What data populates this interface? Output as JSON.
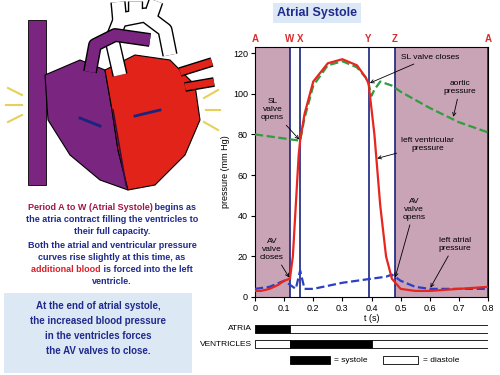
{
  "title": {
    "text": "Atrial Systole",
    "color": "#1f2a8c",
    "background": "#dce8f5"
  },
  "text_panel": {
    "paragraphs": [
      {
        "lines": [
          [
            {
              "text": "Period A to W (Atrial Systole)",
              "color": "#a3164a"
            },
            {
              "text": " begins as",
              "color": "#1f2a8c"
            }
          ],
          [
            {
              "text": "the atria contract filling the ventricles to",
              "color": "#1f2a8c"
            }
          ],
          [
            {
              "text": "their full capacity.",
              "color": "#1f2a8c"
            }
          ]
        ]
      },
      {
        "lines": [
          [
            {
              "text": "Both the atrial and ventricular pressure",
              "color": "#1f2a8c"
            }
          ],
          [
            {
              "text": "curves rise slightly at this time, as",
              "color": "#1f2a8c"
            }
          ],
          [
            {
              "text": "additional blood",
              "color": "#d8202a"
            },
            {
              "text": " is forced into the left",
              "color": "#1f2a8c"
            }
          ],
          [
            {
              "text": "ventricle.",
              "color": "#1f2a8c"
            }
          ]
        ]
      }
    ],
    "callout": {
      "lines": [
        "At the end of atrial systole,",
        "the increased blood pressure",
        "in the ventricles forces",
        "the AV valves to close."
      ],
      "color": "#1f2a8c",
      "background": "#dde8f5"
    }
  },
  "chart_data": {
    "type": "line",
    "xlabel": "t (s)",
    "ylabel": "pressure (mm Hg)",
    "xlim": [
      0,
      0.8
    ],
    "xticks": [
      0,
      0.1,
      0.2,
      0.3,
      0.4,
      0.5,
      0.6,
      0.7,
      0.8
    ],
    "ylim": [
      0,
      123
    ],
    "yticks": [
      0,
      20,
      40,
      60,
      80,
      100,
      120
    ],
    "shaded_spans": [
      {
        "start": 0,
        "end": 0.12
      },
      {
        "start": 0.48,
        "end": 0.8
      }
    ],
    "phase_points": [
      {
        "label": "A",
        "x": 0
      },
      {
        "label": "W",
        "x": 0.12
      },
      {
        "label": "X",
        "x": 0.155
      },
      {
        "label": "Y",
        "x": 0.39
      },
      {
        "label": "Z",
        "x": 0.48
      },
      {
        "label": "A",
        "x": 0.8
      }
    ],
    "series": [
      {
        "color": "#2e9e3e",
        "line_style": "dashed",
        "x": [
          0,
          0.05,
          0.1,
          0.15,
          0.155,
          0.17,
          0.2,
          0.25,
          0.3,
          0.35,
          0.38,
          0.39,
          0.4,
          0.41,
          0.43,
          0.47,
          0.5,
          0.6,
          0.7,
          0.8
        ],
        "values": [
          80,
          79,
          78,
          77,
          77,
          88,
          104,
          114,
          116,
          113,
          108,
          105,
          99,
          102,
          106,
          104,
          101,
          93,
          86,
          81
        ]
      },
      {
        "color": "#2b3fc6",
        "line_style": "dashed",
        "x": [
          0,
          0.05,
          0.1,
          0.12,
          0.14,
          0.155,
          0.17,
          0.2,
          0.3,
          0.4,
          0.45,
          0.47,
          0.5,
          0.55,
          0.6,
          0.7,
          0.8
        ],
        "values": [
          4,
          5,
          8,
          6,
          4,
          13,
          4,
          4,
          7,
          9,
          10,
          11,
          8,
          5,
          4,
          4,
          4
        ]
      },
      {
        "color": "#e8251f",
        "line_style": "solid",
        "x": [
          0,
          0.02,
          0.05,
          0.08,
          0.1,
          0.12,
          0.13,
          0.14,
          0.15,
          0.155,
          0.17,
          0.2,
          0.25,
          0.3,
          0.35,
          0.38,
          0.39,
          0.41,
          0.43,
          0.45,
          0.47,
          0.5,
          0.55,
          0.6,
          0.7,
          0.8
        ],
        "values": [
          3,
          3,
          4,
          6,
          8,
          9,
          20,
          45,
          70,
          77,
          90,
          106,
          115,
          117,
          114,
          108,
          105,
          80,
          45,
          20,
          9,
          4,
          3,
          3,
          4,
          5
        ]
      }
    ],
    "annotations": [
      {
        "text": "SL\nvalve\nopens",
        "x": 0.155,
        "y": 77
      },
      {
        "text": "SL valve closes",
        "x": 0.39,
        "y": 105
      },
      {
        "text": "aortic\npressure",
        "x": 0.68,
        "y": 88
      },
      {
        "text": "left ventricular\npressure",
        "x": 0.415,
        "y": 68
      },
      {
        "text": "AV\nvalve\ncloses",
        "x": 0.12,
        "y": 9
      },
      {
        "text": "AV\nvalve\nopens",
        "x": 0.48,
        "y": 9
      },
      {
        "text": "left atrial\npressure",
        "x": 0.6,
        "y": 4
      }
    ]
  },
  "timeline": {
    "rows": [
      {
        "label": "ATRIA",
        "segments": [
          {
            "phase": "systole",
            "start": 0,
            "end": 0.12
          },
          {
            "phase": "diastole",
            "start": 0.12,
            "end": 0.8
          }
        ]
      },
      {
        "label": "VENTRICLES",
        "segments": [
          {
            "phase": "diastole",
            "start": 0,
            "end": 0.12
          },
          {
            "phase": "systole",
            "start": 0.12,
            "end": 0.4
          },
          {
            "phase": "diastole",
            "start": 0.4,
            "end": 0.8
          }
        ]
      }
    ],
    "legend": [
      {
        "phase": "systole",
        "label": "= systole",
        "color": "#000000"
      },
      {
        "phase": "diastole",
        "label": "= diastole",
        "color": "#ffffff"
      }
    ]
  }
}
